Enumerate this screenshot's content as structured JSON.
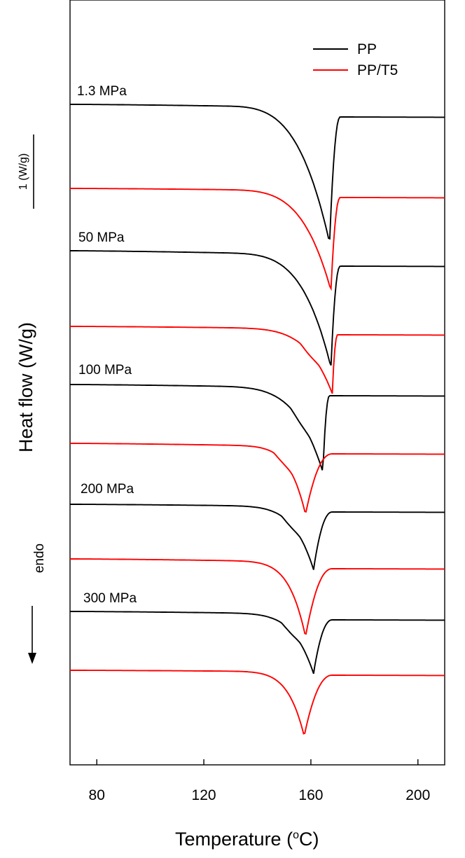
{
  "chart_data": {
    "type": "line",
    "xlabel": "Temperature (",
    "xlabel_unit": "C)",
    "xlabel_sup": "o",
    "ylabel": "Heat  flow (W/g)",
    "xlim": [
      70,
      210
    ],
    "xticks": [
      80,
      120,
      160,
      200
    ],
    "scale_bar_label": "1 (W/g)",
    "endo_label": "endo",
    "legend": [
      {
        "name": "PP",
        "color": "#000000"
      },
      {
        "name": "PP/T5",
        "color": "#ff0000"
      }
    ],
    "groups": [
      {
        "label": "1.3 MPa",
        "pp": {
          "start": 149,
          "end": 167,
          "peak_t": 167,
          "peak_depth": 193,
          "onset_t": 150,
          "sharp": 2.2,
          "shoulder": 0,
          "recover_t": 171
        },
        "pp_t5": {
          "start": 269,
          "end": 282,
          "peak_t": 167.5,
          "peak_depth": 142,
          "onset_t": 148,
          "sharp": 2.8,
          "shoulder": 0,
          "recover_t": 171
        }
      },
      {
        "label": "50 MPa",
        "pp": {
          "start": 358,
          "end": 380,
          "peak_t": 167.5,
          "peak_depth": 160,
          "onset_t": 148,
          "sharp": 2.8,
          "shoulder": 0,
          "recover_t": 171
        },
        "pp_t5": {
          "start": 466,
          "end": 478,
          "peak_t": 168,
          "peak_depth": 92,
          "onset_t": 142,
          "sharp": 4.0,
          "shoulder": 1,
          "recover_t": 170
        }
      },
      {
        "label": "100 MPa",
        "pp": {
          "start": 549,
          "end": 565,
          "peak_t": 164.5,
          "peak_depth": 120,
          "onset_t": 140,
          "sharp": 3.5,
          "shoulder": 1,
          "recover_t": 167
        },
        "pp_t5": {
          "start": 633,
          "end": 648,
          "peak_t": 158,
          "peak_depth": 97,
          "onset_t": 138,
          "sharp": 6.0,
          "shoulder": 1,
          "recover_t": 168
        }
      },
      {
        "label": "200 MPa",
        "pp": {
          "start": 720,
          "end": 731,
          "peak_t": 161,
          "peak_depth": 90,
          "onset_t": 138,
          "sharp": 5.0,
          "shoulder": 1,
          "recover_t": 168
        },
        "pp_t5": {
          "start": 798,
          "end": 812,
          "peak_t": 158,
          "peak_depth": 107,
          "onset_t": 138,
          "sharp": 6.0,
          "shoulder": 0,
          "recover_t": 168
        }
      },
      {
        "label": "300 MPa",
        "pp": {
          "start": 873,
          "end": 885,
          "peak_t": 161,
          "peak_depth": 85,
          "onset_t": 138,
          "sharp": 5.0,
          "shoulder": 1,
          "recover_t": 168
        },
        "pp_t5": {
          "start": 957,
          "end": 964,
          "peak_t": 157.5,
          "peak_depth": 92,
          "onset_t": 138,
          "sharp": 6.0,
          "shoulder": 0,
          "recover_t": 168
        }
      }
    ]
  }
}
